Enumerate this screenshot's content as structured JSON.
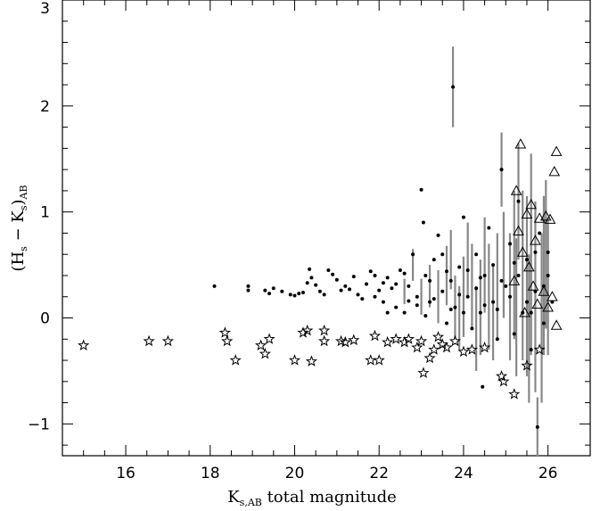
{
  "chart_data": {
    "type": "scatter",
    "title": "",
    "xlabel": {
      "main": "K",
      "sub": "s,AB",
      "rest": " total magnitude"
    },
    "ylabel": {
      "open": "(H",
      "sub1": "s",
      "mid": " − K",
      "sub2": "s",
      "close": ")",
      "sub3": "AB"
    },
    "xlim": [
      14.5,
      27
    ],
    "ylim": [
      -1.3,
      3
    ],
    "xticks": [
      16,
      18,
      20,
      22,
      24,
      26
    ],
    "yticks": [
      -1,
      0,
      1,
      2,
      3
    ],
    "grid": false,
    "legend": "none",
    "series": [
      {
        "marker": "dot",
        "points": [
          [
            18.1,
            0.3
          ],
          [
            18.9,
            0.3
          ],
          [
            18.9,
            0.26
          ],
          [
            19.3,
            0.26
          ],
          [
            19.4,
            0.23
          ],
          [
            19.5,
            0.28
          ],
          [
            19.7,
            0.25
          ],
          [
            19.9,
            0.22
          ],
          [
            20.0,
            0.21
          ],
          [
            20.1,
            0.23
          ],
          [
            20.2,
            0.24
          ],
          [
            20.3,
            0.33
          ],
          [
            20.35,
            0.46
          ],
          [
            20.4,
            0.38
          ],
          [
            20.5,
            0.31
          ],
          [
            20.6,
            0.25
          ],
          [
            20.7,
            0.22
          ],
          [
            20.8,
            0.45
          ],
          [
            20.9,
            0.41
          ],
          [
            21.0,
            0.36
          ],
          [
            21.1,
            0.26
          ],
          [
            21.2,
            0.3
          ],
          [
            21.3,
            0.27
          ],
          [
            21.4,
            0.39
          ],
          [
            21.5,
            0.22
          ],
          [
            21.6,
            0.18
          ],
          [
            21.7,
            0.32
          ],
          [
            21.8,
            0.44
          ],
          [
            21.9,
            0.2
          ],
          [
            22.0,
            0.26
          ],
          [
            22.1,
            0.15
          ],
          [
            22.2,
            0.38
          ],
          [
            22.3,
            0.28
          ],
          [
            22.4,
            0.1
          ],
          [
            22.5,
            0.45
          ],
          [
            22.6,
            0.05
          ],
          [
            22.7,
            0.3
          ],
          [
            22.8,
            0.6
          ],
          [
            22.9,
            0.2
          ],
          [
            23.0,
            1.21
          ],
          [
            23.05,
            0.9
          ],
          [
            23.1,
            0.4
          ],
          [
            23.2,
            0.15
          ],
          [
            23.3,
            0.55
          ],
          [
            23.4,
            0.78
          ],
          [
            23.5,
            0.25
          ],
          [
            23.6,
            -0.05
          ],
          [
            23.7,
            0.35
          ],
          [
            23.75,
            2.18
          ],
          [
            23.8,
            0.1
          ],
          [
            23.9,
            0.48
          ],
          [
            24.0,
            0.95
          ],
          [
            24.1,
            0.2
          ],
          [
            24.2,
            -0.1
          ],
          [
            24.3,
            0.6
          ],
          [
            24.4,
            0.05
          ],
          [
            24.45,
            -0.65
          ],
          [
            24.5,
            0.4
          ],
          [
            24.6,
            0.85
          ],
          [
            24.7,
            0.15
          ],
          [
            24.8,
            -0.2
          ],
          [
            24.9,
            1.4
          ],
          [
            25.0,
            0.3
          ],
          [
            25.1,
            0.7
          ],
          [
            25.2,
            -0.15
          ],
          [
            25.3,
            1.1
          ],
          [
            25.4,
            0.05
          ],
          [
            25.5,
            0.55
          ],
          [
            25.6,
            -0.3
          ],
          [
            25.7,
            0.25
          ],
          [
            25.75,
            -1.03
          ],
          [
            25.8,
            0.8
          ],
          [
            25.9,
            -0.05
          ],
          [
            26.0,
            0.4
          ],
          [
            26.1,
            0.15
          ],
          [
            22.2,
            0.05
          ],
          [
            22.4,
            0.32
          ],
          [
            22.6,
            0.42
          ],
          [
            22.9,
            0.12
          ],
          [
            23.1,
            0.02
          ],
          [
            23.3,
            0.18
          ],
          [
            23.5,
            0.6
          ],
          [
            23.7,
            0.08
          ],
          [
            23.9,
            0.22
          ],
          [
            24.1,
            0.45
          ],
          [
            24.3,
            0.28
          ],
          [
            24.5,
            0.12
          ],
          [
            24.7,
            0.5
          ],
          [
            24.9,
            0.35
          ],
          [
            25.1,
            0.2
          ],
          [
            25.3,
            0.4
          ],
          [
            25.5,
            0.15
          ],
          [
            25.7,
            0.62
          ],
          [
            25.9,
            0.3
          ],
          [
            21.9,
            0.4
          ],
          [
            22.1,
            0.33
          ],
          [
            22.7,
            0.16
          ],
          [
            23.2,
            0.35
          ],
          [
            23.6,
            0.44
          ],
          [
            24.0,
            0.05
          ],
          [
            24.4,
            0.38
          ],
          [
            24.8,
            0.08
          ],
          [
            25.2,
            0.52
          ],
          [
            25.6,
            0.05
          ],
          [
            26.0,
            0.62
          ]
        ]
      },
      {
        "marker": "star",
        "points": [
          [
            15.0,
            -0.26
          ],
          [
            16.55,
            -0.22
          ],
          [
            17.0,
            -0.22
          ],
          [
            18.35,
            -0.14
          ],
          [
            18.4,
            -0.22
          ],
          [
            18.6,
            -0.4
          ],
          [
            19.2,
            -0.26
          ],
          [
            19.3,
            -0.34
          ],
          [
            19.4,
            -0.2
          ],
          [
            20.0,
            -0.4
          ],
          [
            20.2,
            -0.14
          ],
          [
            20.3,
            -0.12
          ],
          [
            20.4,
            -0.41
          ],
          [
            20.7,
            -0.12
          ],
          [
            20.7,
            -0.22
          ],
          [
            21.1,
            -0.22
          ],
          [
            21.2,
            -0.23
          ],
          [
            21.4,
            -0.21
          ],
          [
            21.8,
            -0.4
          ],
          [
            21.9,
            -0.17
          ],
          [
            22.0,
            -0.4
          ],
          [
            22.2,
            -0.23
          ],
          [
            22.4,
            -0.2
          ],
          [
            22.6,
            -0.23
          ],
          [
            22.7,
            -0.2
          ],
          [
            22.9,
            -0.28
          ],
          [
            23.0,
            -0.22
          ],
          [
            23.05,
            -0.52
          ],
          [
            23.2,
            -0.38
          ],
          [
            23.3,
            -0.3
          ],
          [
            23.4,
            -0.18
          ],
          [
            23.5,
            -0.25
          ],
          [
            23.6,
            -0.28
          ],
          [
            23.8,
            -0.22
          ],
          [
            24.0,
            -0.32
          ],
          [
            24.2,
            -0.3
          ],
          [
            24.5,
            -0.28
          ],
          [
            24.9,
            -0.55
          ],
          [
            24.95,
            -0.6
          ],
          [
            25.2,
            -0.72
          ],
          [
            25.5,
            -0.45
          ],
          [
            25.8,
            -0.3
          ]
        ]
      },
      {
        "marker": "triangle",
        "points": [
          [
            25.35,
            1.64
          ],
          [
            26.2,
            1.57
          ],
          [
            26.15,
            1.38
          ],
          [
            25.25,
            1.2
          ],
          [
            25.6,
            1.07
          ],
          [
            25.5,
            0.98
          ],
          [
            25.95,
            0.96
          ],
          [
            25.8,
            0.94
          ],
          [
            26.05,
            0.93
          ],
          [
            25.3,
            0.82
          ],
          [
            25.7,
            0.73
          ],
          [
            25.4,
            0.62
          ],
          [
            25.55,
            0.48
          ],
          [
            25.2,
            0.35
          ],
          [
            25.9,
            0.25
          ],
          [
            26.1,
            0.2
          ],
          [
            25.75,
            0.13
          ],
          [
            26.0,
            0.1
          ],
          [
            25.45,
            0.05
          ],
          [
            26.2,
            -0.07
          ],
          [
            25.65,
            0.3
          ]
        ]
      }
    ],
    "errors": [
      [
        23.75,
        2.18,
        0.38
      ],
      [
        25.75,
        -1.03,
        0.28
      ],
      [
        25.3,
        1.1,
        0.55
      ],
      [
        24.9,
        1.4,
        0.35
      ],
      [
        25.6,
        0.6,
        0.95
      ],
      [
        25.9,
        0.4,
        0.75
      ],
      [
        25.5,
        0.3,
        0.85
      ],
      [
        25.2,
        0.5,
        0.7
      ],
      [
        25.7,
        0.2,
        0.9
      ],
      [
        26.0,
        0.3,
        0.65
      ],
      [
        25.4,
        0.4,
        0.8
      ],
      [
        25.1,
        0.2,
        0.6
      ],
      [
        24.8,
        0.3,
        0.5
      ],
      [
        24.6,
        0.2,
        0.5
      ],
      [
        24.4,
        0.1,
        0.45
      ],
      [
        24.2,
        0.3,
        0.4
      ],
      [
        24.0,
        0.2,
        0.38
      ],
      [
        23.8,
        0.1,
        0.3
      ],
      [
        23.6,
        0.4,
        0.28
      ],
      [
        23.4,
        0.2,
        0.25
      ],
      [
        23.2,
        0.3,
        0.2
      ],
      [
        23.0,
        0.2,
        0.17
      ],
      [
        22.8,
        0.5,
        0.15
      ],
      [
        22.6,
        0.25,
        0.12
      ],
      [
        25.85,
        0.0,
        0.8
      ],
      [
        25.55,
        -0.1,
        0.7
      ],
      [
        25.25,
        0.1,
        0.65
      ],
      [
        25.95,
        0.6,
        0.7
      ],
      [
        24.95,
        0.5,
        0.5
      ],
      [
        24.7,
        0.05,
        0.45
      ],
      [
        24.5,
        0.5,
        0.45
      ],
      [
        24.3,
        -0.1,
        0.4
      ],
      [
        24.1,
        0.55,
        0.35
      ],
      [
        23.9,
        0.0,
        0.3
      ],
      [
        23.7,
        0.55,
        0.28
      ]
    ]
  }
}
